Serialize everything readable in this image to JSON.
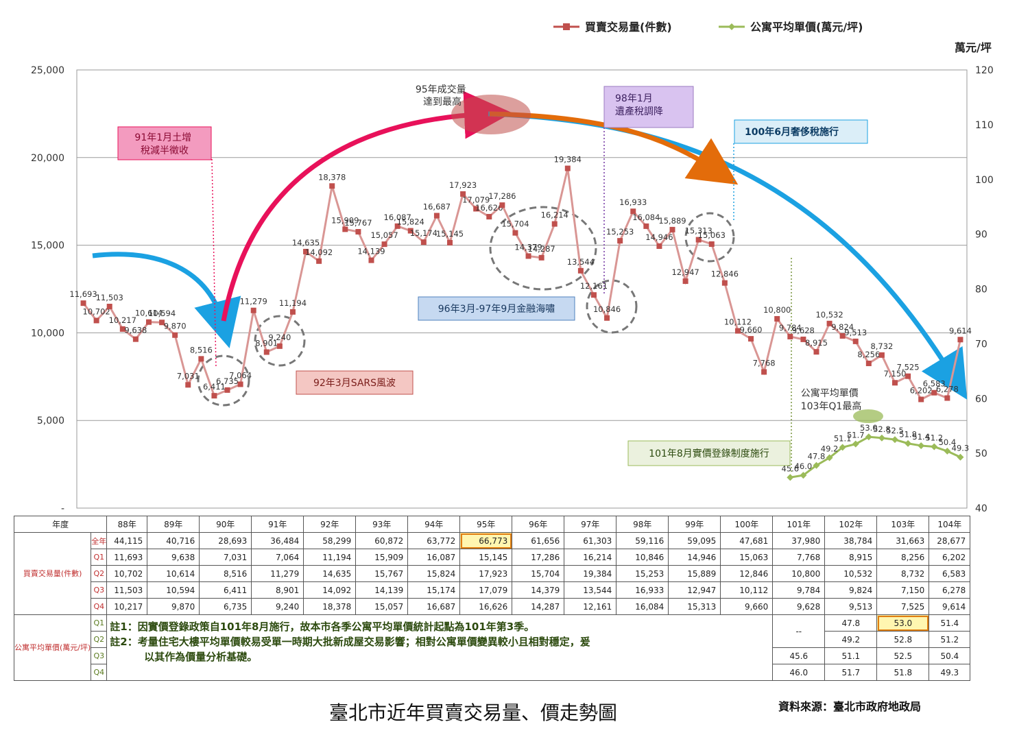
{
  "chart_data": {
    "type": "line",
    "legend": {
      "placement": "top-right"
    },
    "y2_unit": "萬元/坪",
    "ylim": [
      0,
      25000
    ],
    "yticks": [
      "-",
      "5,000",
      "10,000",
      "15,000",
      "20,000",
      "25,000"
    ],
    "y2lim": [
      40,
      120
    ],
    "y2ticks": [
      "40",
      "50",
      "60",
      "70",
      "80",
      "90",
      "100",
      "110",
      "120"
    ],
    "years": [
      "88年",
      "89年",
      "90年",
      "91年",
      "92年",
      "93年",
      "94年",
      "95年",
      "96年",
      "97年",
      "98年",
      "99年",
      "100年",
      "101年",
      "102年",
      "103年",
      "104年"
    ],
    "series": [
      {
        "name": "買賣交易量(件數)",
        "color": "#c0504d",
        "axis": "left",
        "values": [
          11693,
          10702,
          11503,
          10217,
          9638,
          10614,
          10594,
          9870,
          7031,
          8516,
          6411,
          6735,
          7064,
          11279,
          8901,
          9240,
          11194,
          14635,
          14092,
          18378,
          15909,
          15767,
          14139,
          15057,
          16087,
          15824,
          15174,
          16687,
          15145,
          17923,
          17079,
          16626,
          17286,
          15704,
          14379,
          14287,
          16214,
          19384,
          13544,
          12161,
          10846,
          15253,
          16933,
          16084,
          14946,
          15889,
          12947,
          15313,
          15063,
          12846,
          10112,
          9660,
          7768,
          10800,
          9784,
          9628,
          8915,
          10532,
          9824,
          9513,
          8256,
          8732,
          7150,
          7525,
          6202,
          6583,
          6278,
          9614
        ],
        "labels": [
          "11,693",
          "10,702",
          "11,503",
          "10,217",
          "9,638",
          "10,614",
          "10,594",
          "9,870",
          "7,031",
          "8,516",
          "6,411",
          "6,735",
          "7,064",
          "11,279",
          "8,901",
          "9,240",
          "11,194",
          "14,635",
          "14,092",
          "18,378",
          "15,909",
          "15,767",
          "14,139",
          "15,057",
          "16,087",
          "15,824",
          "15,174",
          "16,687",
          "15,145",
          "17,923",
          "17,079",
          "16,626",
          "17,286",
          "15,704",
          "14,379",
          "14,287",
          "16,214",
          "19,384",
          "13,544",
          "12,161",
          "10,846",
          "15,253",
          "16,933",
          "16,084",
          "14,946",
          "15,889",
          "12,947",
          "15,313",
          "15,063",
          "12,846",
          "10,112",
          "9,660",
          "7,768",
          "10,800",
          "9,784",
          "9,628",
          "8,915",
          "10,532",
          "9,824",
          "9,513",
          "8,256",
          "8,732",
          "7,150",
          "7,525",
          "6,202",
          "6,583",
          "6,278",
          "9,614"
        ]
      },
      {
        "name": "公寓平均單價(萬元/坪)",
        "color": "#9bbb59",
        "axis": "right",
        "start_index": 54,
        "values": [
          45.6,
          46.0,
          47.8,
          49.2,
          51.1,
          51.7,
          53.0,
          52.8,
          52.5,
          51.8,
          51.4,
          51.2,
          50.4,
          49.3
        ],
        "labels": [
          "45.6",
          "46.0",
          "47.8",
          "49.2",
          "51.1",
          "51.7",
          "53.0",
          "52.8",
          "52.5",
          "51.8",
          "51.4",
          "51.2",
          "50.4",
          "49.3"
        ]
      }
    ],
    "annotations": {
      "a1": "91年1月土增\n稅減半徵收",
      "a2": "95年成交量\n達到最高",
      "a3": "98年1月\n遺產稅調降",
      "a4": "100年6月奢侈稅施行",
      "a5": "96年3月-97年9月金融海嘯",
      "a6": "92年3月SARS風波",
      "a7": "公寓平均單價\n103年Q1最高",
      "a8": "101年8月實價登錄制度施行"
    }
  },
  "table": {
    "header_label": "年度",
    "years": [
      "88年",
      "89年",
      "90年",
      "91年",
      "92年",
      "93年",
      "94年",
      "95年",
      "96年",
      "97年",
      "98年",
      "99年",
      "100年",
      "101年",
      "102年",
      "103年",
      "104年"
    ],
    "volume_label": "買賣交易量(件數)",
    "price_label": "公寓平均單價(萬元/坪)",
    "rows": [
      {
        "label": "全年",
        "values": [
          "44,115",
          "40,716",
          "28,693",
          "36,484",
          "58,299",
          "60,872",
          "63,772",
          "66,773",
          "61,656",
          "61,303",
          "59,116",
          "59,095",
          "47,681",
          "37,980",
          "38,784",
          "31,663",
          "28,677"
        ]
      },
      {
        "label": "Q1",
        "values": [
          "11,693",
          "9,638",
          "7,031",
          "7,064",
          "11,194",
          "15,909",
          "16,087",
          "15,145",
          "17,286",
          "16,214",
          "10,846",
          "14,946",
          "15,063",
          "7,768",
          "8,915",
          "8,256",
          "6,202"
        ]
      },
      {
        "label": "Q2",
        "values": [
          "10,702",
          "10,614",
          "8,516",
          "11,279",
          "14,635",
          "15,767",
          "15,824",
          "17,923",
          "15,704",
          "19,384",
          "15,253",
          "15,889",
          "12,846",
          "10,800",
          "10,532",
          "8,732",
          "6,583"
        ]
      },
      {
        "label": "Q3",
        "values": [
          "11,503",
          "10,594",
          "6,411",
          "8,901",
          "14,092",
          "14,139",
          "15,174",
          "17,079",
          "14,379",
          "13,544",
          "16,933",
          "12,947",
          "10,112",
          "9,784",
          "9,824",
          "7,150",
          "6,278"
        ]
      },
      {
        "label": "Q4",
        "values": [
          "10,217",
          "9,870",
          "6,735",
          "9,240",
          "18,378",
          "15,057",
          "16,687",
          "16,626",
          "14,287",
          "12,161",
          "16,084",
          "15,313",
          "9,660",
          "9,628",
          "9,513",
          "7,525",
          "9,614"
        ]
      }
    ],
    "price_rows": [
      {
        "label": "Q1",
        "values": [
          "--",
          "47.8",
          "53.0",
          "51.4"
        ]
      },
      {
        "label": "Q2",
        "values": [
          "",
          "49.2",
          "52.8",
          "51.2"
        ]
      },
      {
        "label": "Q3",
        "values": [
          "45.6",
          "51.1",
          "52.5",
          "50.4"
        ]
      },
      {
        "label": "Q4",
        "values": [
          "46.0",
          "51.7",
          "51.8",
          "49.3"
        ]
      }
    ],
    "note1": "註1：因實價登錄政策自101年8月施行，故本市各季公寓平均單價統計起點為101年第3季。",
    "note2a": "註2：考量住宅大樓平均單價較易受單一時期大批新成屋交易影響；相對公寓單價變異較小且相對穩定，爰",
    "note2b": "以其作為價量分析基礎。"
  },
  "caption": "臺北市近年買賣交易量、價走勢圖",
  "source": "資料來源：臺北市政府地政局"
}
